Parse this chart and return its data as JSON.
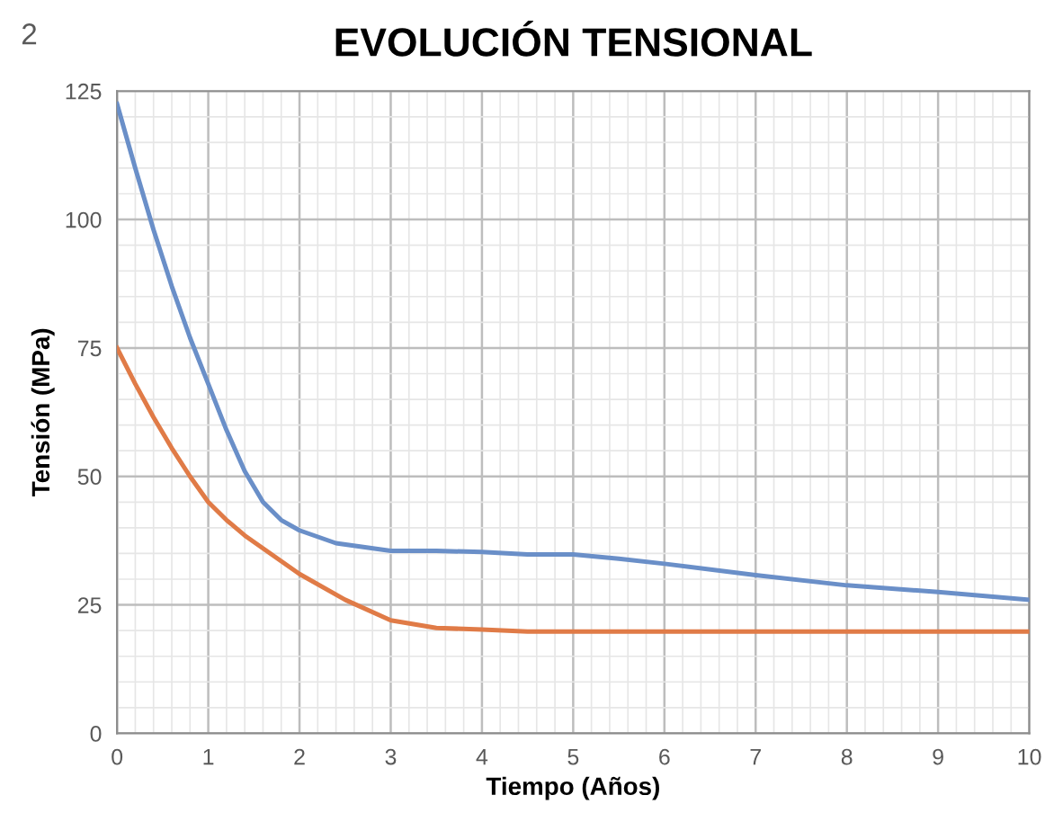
{
  "chart_data": {
    "type": "line",
    "title": "EVOLUCIÓN TENSIONAL",
    "xlabel": "Tiempo (Años)",
    "ylabel": "Tensión (MPa)",
    "annotations": [
      "2"
    ],
    "xlim": [
      0,
      10
    ],
    "xticks": [
      0,
      1,
      2,
      3,
      4,
      5,
      6,
      7,
      8,
      9,
      10
    ],
    "ylim": [
      0,
      125
    ],
    "yticks": [
      0,
      25,
      50,
      75,
      100,
      125
    ],
    "grid": true,
    "marker": "none",
    "line_style": "solid",
    "series": [
      {
        "color": "#6a8fc8",
        "x": [
          0,
          0.2,
          0.4,
          0.6,
          0.8,
          1,
          1.2,
          1.4,
          1.6,
          1.8,
          2,
          2.4,
          3,
          3.5,
          4,
          4.5,
          5,
          5.5,
          6,
          7,
          8,
          9,
          10
        ],
        "values": [
          122.5,
          110,
          98,
          87,
          77,
          68,
          59,
          51,
          45,
          41.5,
          39.5,
          37,
          35.5,
          35.5,
          35.3,
          34.8,
          34.8,
          34,
          33,
          30.8,
          28.8,
          27.5,
          26
        ]
      },
      {
        "color": "#e07b47",
        "x": [
          0,
          0.2,
          0.4,
          0.6,
          0.8,
          1,
          1.2,
          1.4,
          1.6,
          2,
          2.5,
          3,
          3.5,
          4,
          4.5,
          5,
          6,
          7,
          8,
          9,
          10
        ],
        "values": [
          75,
          68,
          61.5,
          55.5,
          50,
          45,
          41.5,
          38.5,
          36,
          31,
          26,
          22,
          20.5,
          20.2,
          19.8,
          19.8,
          19.8,
          19.8,
          19.8,
          19.8,
          19.8
        ]
      }
    ]
  }
}
